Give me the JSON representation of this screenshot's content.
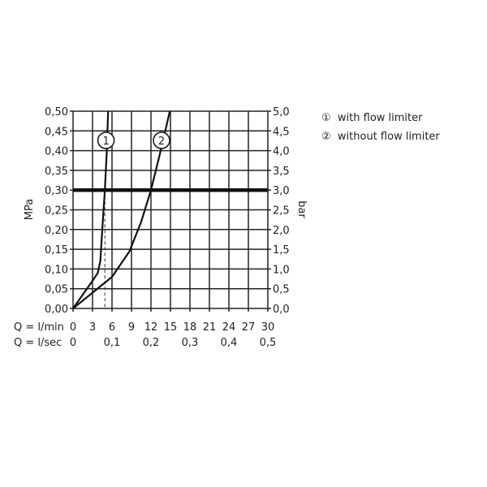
{
  "chart_data": {
    "type": "line",
    "ylabel_left": "MPa",
    "ylabel_right": "bar",
    "xlabel_lmin": "Q = l/min",
    "xlabel_lsec": "Q = l/sec",
    "xlim": [
      0,
      30
    ],
    "ylim": [
      0,
      0.5
    ],
    "grid": true,
    "x_ticks_lmin": [
      "0",
      "3",
      "6",
      "9",
      "12",
      "15",
      "18",
      "21",
      "24",
      "27",
      "30"
    ],
    "x_ticks_lsec": [
      {
        "value": 0,
        "label": "0"
      },
      {
        "value": 6,
        "label": "0,1"
      },
      {
        "value": 12,
        "label": "0,2"
      },
      {
        "value": 18,
        "label": "0,3"
      },
      {
        "value": 24,
        "label": "0,4"
      },
      {
        "value": 30,
        "label": "0,5"
      }
    ],
    "y_ticks_left": [
      "0,00",
      "0,05",
      "0,10",
      "0,15",
      "0,20",
      "0,25",
      "0,30",
      "0,35",
      "0,40",
      "0,45",
      "0,50"
    ],
    "y_ticks_right": [
      "0,0",
      "0,5",
      "1,0",
      "1,5",
      "2,0",
      "2,5",
      "3,0",
      "3,5",
      "4,0",
      "4,5",
      "5,0"
    ],
    "reference_line": {
      "y": 0.3
    },
    "series": [
      {
        "marker": "1",
        "name": "with flow limiter",
        "drop_x": 4.9,
        "points": [
          [
            0,
            0
          ],
          [
            1.5,
            0.035
          ],
          [
            3,
            0.07
          ],
          [
            3.8,
            0.09
          ],
          [
            4.2,
            0.12
          ],
          [
            4.5,
            0.2
          ],
          [
            4.9,
            0.3
          ],
          [
            5.2,
            0.4
          ],
          [
            5.4,
            0.5
          ]
        ]
      },
      {
        "marker": "2",
        "name": "without flow limiter",
        "drop_x": 12,
        "points": [
          [
            0,
            0
          ],
          [
            3,
            0.04
          ],
          [
            6,
            0.08
          ],
          [
            8.7,
            0.145
          ],
          [
            10.5,
            0.22
          ],
          [
            12,
            0.3
          ],
          [
            13.5,
            0.4
          ],
          [
            14.9,
            0.5
          ]
        ]
      }
    ]
  },
  "legend": [
    {
      "symbol": "①",
      "label": "with flow limiter"
    },
    {
      "symbol": "②",
      "label": "without flow limiter"
    }
  ]
}
